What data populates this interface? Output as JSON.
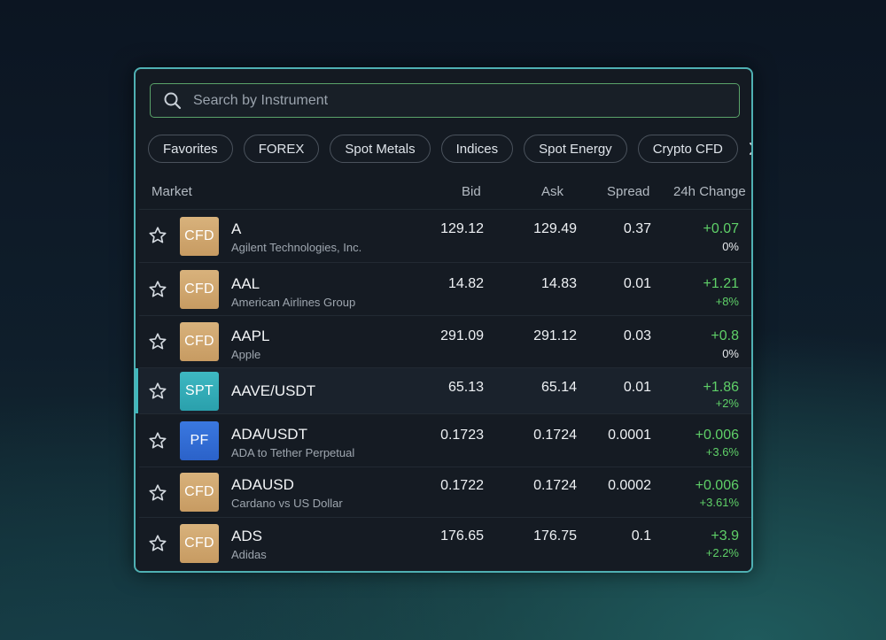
{
  "search": {
    "placeholder": "Search by Instrument"
  },
  "categories": [
    "Favorites",
    "FOREX",
    "Spot Metals",
    "Indices",
    "Spot Energy",
    "Crypto CFD"
  ],
  "columns": {
    "market": "Market",
    "bid": "Bid",
    "ask": "Ask",
    "spread": "Spread",
    "change": "24h Change"
  },
  "colors": {
    "accent": "#4fb0b3",
    "positive": "#5fd068",
    "cfd_badge": "#d0a870",
    "spt_badge": "#35adb8",
    "pf_badge": "#3370d8"
  },
  "instruments": [
    {
      "badge": "CFD",
      "symbol": "A",
      "name": "Agilent Technologies, Inc.",
      "bid": "129.12",
      "ask": "129.49",
      "spread": "0.37",
      "change": "+0.07",
      "change_pct": "0%"
    },
    {
      "badge": "CFD",
      "symbol": "AAL",
      "name": "American Airlines Group",
      "bid": "14.82",
      "ask": "14.83",
      "spread": "0.01",
      "change": "+1.21",
      "change_pct": "+8%"
    },
    {
      "badge": "CFD",
      "symbol": "AAPL",
      "name": "Apple",
      "bid": "291.09",
      "ask": "291.12",
      "spread": "0.03",
      "change": "+0.8",
      "change_pct": "0%"
    },
    {
      "badge": "SPT",
      "symbol": "AAVE/USDT",
      "name": "",
      "bid": "65.13",
      "ask": "65.14",
      "spread": "0.01",
      "change": "+1.86",
      "change_pct": "+2%",
      "selected": true
    },
    {
      "badge": "PF",
      "symbol": "ADA/USDT",
      "name": "ADA to Tether Perpetual",
      "bid": "0.1723",
      "ask": "0.1724",
      "spread": "0.0001",
      "change": "+0.006",
      "change_pct": "+3.6%"
    },
    {
      "badge": "CFD",
      "symbol": "ADAUSD",
      "name": "Cardano vs US Dollar",
      "bid": "0.1722",
      "ask": "0.1724",
      "spread": "0.0002",
      "change": "+0.006",
      "change_pct": "+3.61%"
    },
    {
      "badge": "CFD",
      "symbol": "ADS",
      "name": "Adidas",
      "bid": "176.65",
      "ask": "176.75",
      "spread": "0.1",
      "change": "+3.9",
      "change_pct": "+2.2%"
    }
  ],
  "icons": {
    "search": "search-icon",
    "star": "star-outline-icon",
    "more": "chevron-right-icon"
  }
}
